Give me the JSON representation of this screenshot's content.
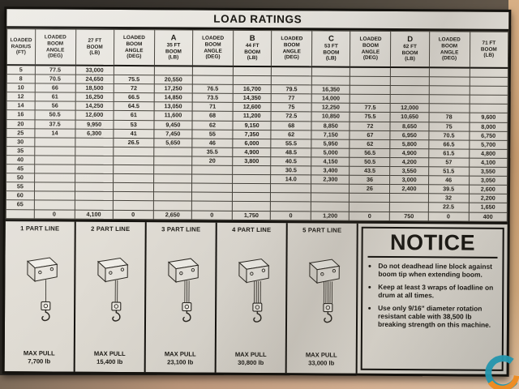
{
  "colors": {
    "placard_bg": "#e6e2da",
    "ink": "#14120e",
    "logo_teal": "#2496ae",
    "logo_orange": "#ef8b1f"
  },
  "placard": {
    "title": "LOAD RATINGS",
    "table": {
      "columns": [
        {
          "kind": "radius",
          "letter": "",
          "lines": [
            "LOADED",
            "RADIUS",
            "(FT)"
          ]
        },
        {
          "kind": "angle",
          "letter": "",
          "lines": [
            "LOADED",
            "BOOM",
            "ANGLE",
            "(DEG)"
          ]
        },
        {
          "kind": "boom",
          "letter": "",
          "lines": [
            "27 FT",
            "BOOM",
            "(LB)"
          ]
        },
        {
          "kind": "angle",
          "letter": "",
          "lines": [
            "LOADED",
            "BOOM",
            "ANGLE",
            "(DEG)"
          ]
        },
        {
          "kind": "boom",
          "letter": "A",
          "lines": [
            "35 FT",
            "BOOM",
            "(LB)"
          ]
        },
        {
          "kind": "angle",
          "letter": "",
          "lines": [
            "LOADED",
            "BOOM",
            "ANGLE",
            "(DEG)"
          ]
        },
        {
          "kind": "boom",
          "letter": "B",
          "lines": [
            "44 FT",
            "BOOM",
            "(LB)"
          ]
        },
        {
          "kind": "angle",
          "letter": "",
          "lines": [
            "LOADED",
            "BOOM",
            "ANGLE",
            "(DEG)"
          ]
        },
        {
          "kind": "boom",
          "letter": "C",
          "lines": [
            "53 FT",
            "BOOM",
            "(LB)"
          ]
        },
        {
          "kind": "angle",
          "letter": "",
          "lines": [
            "LOADED",
            "BOOM",
            "ANGLE",
            "(DEG)"
          ]
        },
        {
          "kind": "boom",
          "letter": "D",
          "lines": [
            "62 FT",
            "BOOM",
            "(LB)"
          ]
        },
        {
          "kind": "angle",
          "letter": "",
          "lines": [
            "LOADED",
            "BOOM",
            "ANGLE",
            "(DEG)"
          ]
        },
        {
          "kind": "boom",
          "letter": "",
          "lines": [
            "71 FT",
            "BOOM",
            "(LB)"
          ]
        }
      ],
      "rows": [
        [
          "5",
          "77.5",
          "33,000",
          "",
          "",
          "",
          "",
          "",
          "",
          "",
          "",
          "",
          ""
        ],
        [
          "8",
          "70.5",
          "24,650",
          "75.5",
          "20,550",
          "",
          "",
          "",
          "",
          "",
          "",
          "",
          ""
        ],
        [
          "10",
          "66",
          "18,500",
          "72",
          "17,250",
          "76.5",
          "16,700",
          "79.5",
          "16,350",
          "",
          "",
          "",
          ""
        ],
        [
          "12",
          "61",
          "16,250",
          "66.5",
          "14,850",
          "73.5",
          "14,350",
          "77",
          "14,000",
          "",
          "",
          "",
          ""
        ],
        [
          "14",
          "56",
          "14,250",
          "64.5",
          "13,050",
          "71",
          "12,600",
          "75",
          "12,250",
          "77.5",
          "12,000",
          "",
          ""
        ],
        [
          "16",
          "50.5",
          "12,600",
          "61",
          "11,600",
          "68",
          "11,200",
          "72.5",
          "10,850",
          "75.5",
          "10,650",
          "78",
          "9,600"
        ],
        [
          "20",
          "37.5",
          "9,950",
          "53",
          "9,450",
          "62",
          "9,150",
          "68",
          "8,850",
          "72",
          "8,650",
          "75",
          "8,000"
        ],
        [
          "25",
          "14",
          "6,300",
          "41",
          "7,450",
          "55",
          "7,350",
          "62",
          "7,150",
          "67",
          "6,950",
          "70.5",
          "6,750"
        ],
        [
          "30",
          "",
          "",
          "26.5",
          "5,650",
          "46",
          "6,000",
          "55.5",
          "5,950",
          "62",
          "5,800",
          "66.5",
          "5,700"
        ],
        [
          "35",
          "",
          "",
          "",
          "",
          "35.5",
          "4,900",
          "48.5",
          "5,000",
          "56.5",
          "4,900",
          "61.5",
          "4,800"
        ],
        [
          "40",
          "",
          "",
          "",
          "",
          "20",
          "3,800",
          "40.5",
          "4,150",
          "50.5",
          "4,200",
          "57",
          "4,100"
        ],
        [
          "45",
          "",
          "",
          "",
          "",
          "",
          "",
          "30.5",
          "3,400",
          "43.5",
          "3,550",
          "51.5",
          "3,550"
        ],
        [
          "50",
          "",
          "",
          "",
          "",
          "",
          "",
          "14.0",
          "2,300",
          "36",
          "3,000",
          "46",
          "3,050"
        ],
        [
          "55",
          "",
          "",
          "",
          "",
          "",
          "",
          "",
          "",
          "26",
          "2,400",
          "39.5",
          "2,600"
        ],
        [
          "60",
          "",
          "",
          "",
          "",
          "",
          "",
          "",
          "",
          "",
          "",
          "32",
          "2,200"
        ],
        [
          "65",
          "",
          "",
          "",
          "",
          "",
          "",
          "",
          "",
          "",
          "",
          "22.5",
          "1,650"
        ],
        [
          "",
          "0",
          "4,100",
          "0",
          "2,650",
          "0",
          "1,750",
          "0",
          "1,200",
          "0",
          "750",
          "0",
          "400"
        ]
      ]
    },
    "part_lines": [
      {
        "label": "1 PART LINE",
        "parts": 1,
        "max_pull_label": "MAX PULL",
        "max_pull_value": "7,700 lb"
      },
      {
        "label": "2 PART LINE",
        "parts": 2,
        "max_pull_label": "MAX PULL",
        "max_pull_value": "15,400 lb"
      },
      {
        "label": "3 PART LINE",
        "parts": 3,
        "max_pull_label": "MAX PULL",
        "max_pull_value": "23,100 lb"
      },
      {
        "label": "4 PART LINE",
        "parts": 4,
        "max_pull_label": "MAX PULL",
        "max_pull_value": "30,800 lb"
      },
      {
        "label": "5 PART LINE",
        "parts": 5,
        "max_pull_label": "MAX PULL",
        "max_pull_value": "33,000 lb"
      }
    ],
    "notice": {
      "title": "NOTICE",
      "bullets": [
        "Do not deadhead line block against boom tip when extending boom.",
        "Keep at least 3 wraps of loadline on drum at all times.",
        "Use only 9/16\" diameter rotation resistant cable with 38,500 lb breaking strength on this machine."
      ]
    }
  }
}
